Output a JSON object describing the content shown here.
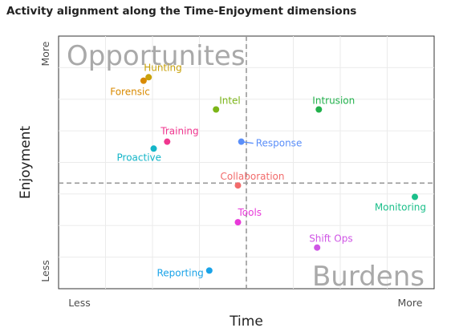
{
  "chart_data": {
    "type": "scatter",
    "title": "Activity alignment along the Time-Enjoyment dimensions",
    "xlabel": "Time",
    "ylabel": "Enjoyment",
    "x_ticks": [
      "Less",
      "More"
    ],
    "y_ticks": [
      "Less",
      "More"
    ],
    "xlim": [
      0,
      10
    ],
    "ylim": [
      0,
      10
    ],
    "x_split": 5,
    "y_split": 4.1,
    "quadrants": [
      {
        "label": "Opportunites",
        "position": "top-left"
      },
      {
        "label": "Burdens",
        "position": "bottom-right"
      }
    ],
    "grid": true,
    "legend": "none",
    "points": [
      {
        "label": "Hunting",
        "x": 2.1,
        "y": 8.7,
        "color": "#c9a20a"
      },
      {
        "label": "Forensic",
        "x": 1.95,
        "y": 8.55,
        "color": "#d98a00"
      },
      {
        "label": "Intel",
        "x": 4.1,
        "y": 7.3,
        "color": "#7cb518"
      },
      {
        "label": "Intrusion",
        "x": 7.15,
        "y": 7.3,
        "color": "#22b14c"
      },
      {
        "label": "Training",
        "x": 2.65,
        "y": 5.9,
        "color": "#f0368f"
      },
      {
        "label": "Response",
        "x": 4.85,
        "y": 5.9,
        "color": "#5b8ff9"
      },
      {
        "label": "Proactive",
        "x": 2.25,
        "y": 5.6,
        "color": "#13b5c8"
      },
      {
        "label": "Collaboration",
        "x": 4.75,
        "y": 4.0,
        "color": "#f26b6b"
      },
      {
        "label": "Monitoring",
        "x": 10.0,
        "y": 3.5,
        "color": "#1bbf8a"
      },
      {
        "label": "Tools",
        "x": 4.75,
        "y": 2.4,
        "color": "#e83ad9"
      },
      {
        "label": "Shift Ops",
        "x": 7.1,
        "y": 1.3,
        "color": "#cf55e5"
      },
      {
        "label": "Reporting",
        "x": 3.9,
        "y": 0.3,
        "color": "#1aa3e8"
      }
    ]
  }
}
